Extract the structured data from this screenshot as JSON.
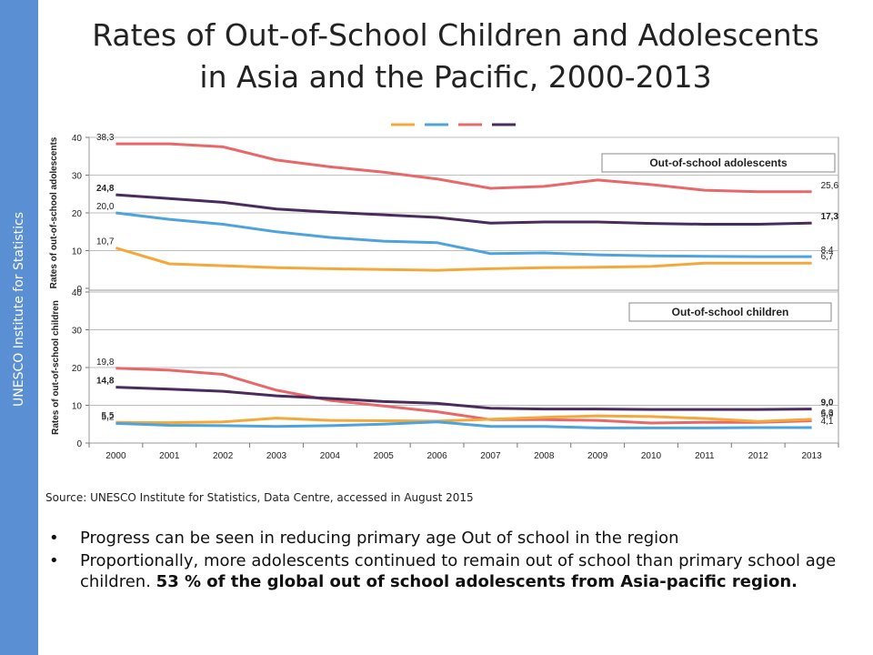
{
  "sidebar": {
    "label": "UNESCO Institute for Statistics"
  },
  "title": {
    "line1": "Rates of Out-of-School Children and Adolescents",
    "line2": "in Asia and the Pacific, 2000-2013"
  },
  "source": "Source: UNESCO Institute for Statistics, Data Centre, accessed in August 2015",
  "bullets": [
    {
      "text": "Progress can be seen in reducing primary age Out of school in the region",
      "bold": ""
    },
    {
      "text": "Proportionally, more adolescents continued to remain out of school than primary school age children. ",
      "bold": "53 % of the global out of school adolescents from Asia-pacific region."
    }
  ],
  "colors": {
    "orange": "#f5a83a",
    "blue": "#4da3dc",
    "red": "#e8686a",
    "purple": "#4a2c5c"
  },
  "chart_data": [
    {
      "type": "line",
      "panel_label": "Out-of-school adolescents",
      "ylabel": "Rates of out-of-school adolescents",
      "ylim": [
        0,
        40
      ],
      "yticks": [
        0,
        10,
        20,
        30,
        40
      ],
      "x": [
        2000,
        2001,
        2002,
        2003,
        2004,
        2005,
        2006,
        2007,
        2008,
        2009,
        2010,
        2011,
        2012,
        2013
      ],
      "legend_position": "top",
      "grid": true,
      "series": [
        {
          "color": "#e8686a",
          "values": [
            38.3,
            38.3,
            37.5,
            34.0,
            32.2,
            30.8,
            29.0,
            26.5,
            27.0,
            28.7,
            27.5,
            26.0,
            25.6,
            25.6
          ],
          "labels": [
            {
              "i": 0,
              "text": "38,3",
              "bold": false,
              "side": "start"
            },
            {
              "i": 13,
              "text": "25,6",
              "bold": false,
              "side": "end"
            }
          ]
        },
        {
          "color": "#4a2c5c",
          "values": [
            24.8,
            23.8,
            22.8,
            21.0,
            20.2,
            19.5,
            18.8,
            17.3,
            17.6,
            17.6,
            17.2,
            17.0,
            17.0,
            17.3
          ],
          "labels": [
            {
              "i": 0,
              "text": "24,8",
              "bold": true,
              "side": "start"
            },
            {
              "i": 13,
              "text": "17,3",
              "bold": true,
              "side": "end"
            }
          ]
        },
        {
          "color": "#4da3dc",
          "values": [
            20.0,
            18.3,
            17.0,
            15.0,
            13.5,
            12.5,
            12.1,
            9.2,
            9.4,
            8.9,
            8.6,
            8.5,
            8.4,
            8.4
          ],
          "labels": [
            {
              "i": 0,
              "text": "20,0",
              "bold": false,
              "side": "start"
            },
            {
              "i": 13,
              "text": "8,4",
              "bold": false,
              "side": "end"
            }
          ]
        },
        {
          "color": "#f5a83a",
          "values": [
            10.7,
            6.5,
            6.0,
            5.5,
            5.2,
            5.0,
            4.8,
            5.2,
            5.5,
            5.6,
            5.8,
            6.7,
            6.7,
            6.7
          ],
          "labels": [
            {
              "i": 0,
              "text": "10,7",
              "bold": false,
              "side": "start"
            },
            {
              "i": 13,
              "text": "6,7",
              "bold": false,
              "side": "end"
            }
          ]
        }
      ]
    },
    {
      "type": "line",
      "panel_label": "Out-of-school children",
      "ylabel": "Rates of out-of-school children",
      "ylim": [
        0,
        40
      ],
      "yticks": [
        0,
        10,
        20,
        30,
        40
      ],
      "x": [
        2000,
        2001,
        2002,
        2003,
        2004,
        2005,
        2006,
        2007,
        2008,
        2009,
        2010,
        2011,
        2012,
        2013
      ],
      "grid": true,
      "series": [
        {
          "color": "#e8686a",
          "values": [
            19.8,
            19.3,
            18.2,
            14.0,
            11.3,
            9.8,
            8.3,
            6.2,
            6.2,
            6.0,
            5.3,
            5.5,
            5.5,
            5.9
          ],
          "labels": [
            {
              "i": 0,
              "text": "19,8",
              "bold": false,
              "side": "start"
            },
            {
              "i": 13,
              "text": "5,9",
              "bold": false,
              "side": "end"
            }
          ]
        },
        {
          "color": "#4a2c5c",
          "values": [
            14.8,
            14.3,
            13.7,
            12.5,
            11.8,
            11.0,
            10.5,
            9.2,
            9.0,
            9.0,
            8.9,
            8.9,
            8.9,
            9.0
          ],
          "labels": [
            {
              "i": 0,
              "text": "14,8",
              "bold": true,
              "side": "start"
            },
            {
              "i": 13,
              "text": "9,0",
              "bold": true,
              "side": "end"
            }
          ]
        },
        {
          "color": "#f5a83a",
          "values": [
            5.5,
            5.4,
            5.6,
            6.6,
            6.0,
            5.9,
            5.8,
            6.3,
            6.8,
            7.2,
            7.0,
            6.5,
            5.7,
            6.3
          ],
          "labels": [
            {
              "i": 0,
              "text": "5,5",
              "bold": false,
              "side": "start"
            },
            {
              "i": 13,
              "text": "6,3",
              "bold": false,
              "side": "end"
            }
          ]
        },
        {
          "color": "#4da3dc",
          "values": [
            5.2,
            4.7,
            4.6,
            4.4,
            4.6,
            5.0,
            5.6,
            4.4,
            4.4,
            4.0,
            4.0,
            4.0,
            4.1,
            4.1
          ],
          "labels": [
            {
              "i": 0,
              "text": "5,2",
              "bold": false,
              "side": "start"
            },
            {
              "i": 13,
              "text": "4,1",
              "bold": false,
              "side": "end"
            }
          ]
        }
      ]
    }
  ]
}
